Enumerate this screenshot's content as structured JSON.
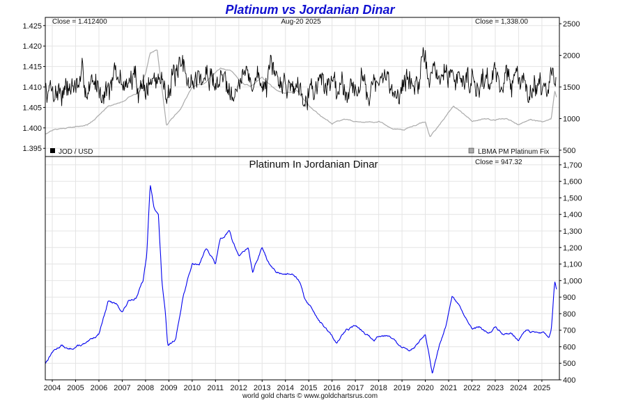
{
  "title": "Platinum vs Jordanian Dinar",
  "footer": "world gold charts © www.goldchartsrus.com",
  "colors": {
    "jod": "#000000",
    "lbma": "#aaaaaa",
    "ratio": "#0000ee",
    "title": "#1010d0"
  },
  "chart_data": [
    {
      "type": "line",
      "panel": "top",
      "date_label": "Aug-20  2025",
      "close_left": "Close = 1.412400",
      "close_right": "Close = 1,338.00",
      "legend_left": "JOD / USD",
      "legend_right": "LBMA PM Platinum Fix",
      "legend_placement": "bottom",
      "grid": true,
      "x_range": [
        2003.7,
        2025.75
      ],
      "y_left_range": [
        1.393,
        1.427
      ],
      "y_right_range": [
        400,
        2600
      ],
      "y_left_ticks": [
        "1.395",
        "1.400",
        "1.405",
        "1.410",
        "1.415",
        "1.420",
        "1.425"
      ],
      "y_left_tick_values": [
        1.395,
        1.4,
        1.405,
        1.41,
        1.415,
        1.42,
        1.425
      ],
      "y_right_ticks": [
        "500",
        "1000",
        "1500",
        "2000",
        "2500"
      ],
      "y_right_tick_values": [
        500,
        1000,
        1500,
        2000,
        2500
      ],
      "series": [
        {
          "name": "JOD / USD",
          "axis": "left",
          "noise": 0.0026,
          "x": [
            2003.7,
            2004.5,
            2005.5,
            2006.5,
            2007.5,
            2008.5,
            2009.5,
            2010.5,
            2011.5,
            2012.5,
            2013.5,
            2014.5,
            2015.5,
            2016.5,
            2017.5,
            2018.5,
            2019.5,
            2020.0,
            2021.0,
            2022.0,
            2023.0,
            2023.7,
            2024.0,
            2024.5,
            2024.9,
            2025.2,
            2025.6
          ],
          "y": [
            1.41,
            1.41,
            1.41,
            1.411,
            1.411,
            1.411,
            1.412,
            1.412,
            1.412,
            1.412,
            1.411,
            1.411,
            1.411,
            1.411,
            1.411,
            1.41,
            1.4115,
            1.413,
            1.4125,
            1.4125,
            1.4125,
            1.412,
            1.411,
            1.4115,
            1.412,
            1.411,
            1.4124
          ]
        },
        {
          "name": "LBMA PM Platinum Fix",
          "axis": "right",
          "noise": 14,
          "x": [
            2003.7,
            2004.0,
            2004.5,
            2005.0,
            2005.5,
            2006.0,
            2006.4,
            2007.0,
            2007.6,
            2008.0,
            2008.2,
            2008.5,
            2008.9,
            2009.5,
            2010.0,
            2010.5,
            2011.2,
            2011.7,
            2012.0,
            2012.5,
            2013.0,
            2013.6,
            2014.0,
            2014.5,
            2015.0,
            2015.5,
            2016.0,
            2016.5,
            2017.0,
            2017.5,
            2018.0,
            2018.5,
            2019.0,
            2019.5,
            2020.0,
            2020.2,
            2020.5,
            2021.0,
            2021.2,
            2021.7,
            2022.0,
            2022.5,
            2023.0,
            2023.5,
            2024.0,
            2024.5,
            2025.0,
            2025.4,
            2025.55,
            2025.63
          ],
          "y": [
            760,
            820,
            850,
            870,
            900,
            1050,
            1200,
            1270,
            1400,
            1700,
            2050,
            2080,
            900,
            1150,
            1500,
            1550,
            1800,
            1750,
            1600,
            1500,
            1650,
            1450,
            1400,
            1450,
            1200,
            1050,
            920,
            1000,
            950,
            950,
            950,
            850,
            820,
            880,
            950,
            700,
            850,
            1100,
            1200,
            1050,
            950,
            1000,
            980,
            1000,
            900,
            980,
            950,
            1000,
            1450,
            1338
          ]
        }
      ]
    },
    {
      "type": "line",
      "panel": "bottom",
      "title": "Platinum In Jordanian Dinar",
      "close_right": "Close = 947.32",
      "grid": true,
      "x_range": [
        2003.7,
        2025.75
      ],
      "y_range": [
        400,
        1750
      ],
      "y_ticks": [
        "400",
        "500",
        "600",
        "700",
        "800",
        "900",
        "1,000",
        "1,100",
        "1,200",
        "1,300",
        "1,400",
        "1,500",
        "1,600",
        "1,700"
      ],
      "y_tick_values": [
        400,
        500,
        600,
        700,
        800,
        900,
        1000,
        1100,
        1200,
        1300,
        1400,
        1500,
        1600,
        1700
      ],
      "x_ticks": [
        "2004",
        "2005",
        "2006",
        "2007",
        "2008",
        "2009",
        "2010",
        "2011",
        "2012",
        "2013",
        "2014",
        "2015",
        "2016",
        "2017",
        "2018",
        "2019",
        "2020",
        "2021",
        "2022",
        "2023",
        "2024",
        "2025"
      ],
      "x_tick_values": [
        2004,
        2005,
        2006,
        2007,
        2008,
        2009,
        2010,
        2011,
        2012,
        2013,
        2014,
        2015,
        2016,
        2017,
        2018,
        2019,
        2020,
        2021,
        2022,
        2023,
        2024,
        2025
      ],
      "series": [
        {
          "name": "Platinum In Jordanian Dinar",
          "noise": 10,
          "x": [
            2003.7,
            2004.0,
            2004.4,
            2004.7,
            2005.0,
            2005.5,
            2006.0,
            2006.4,
            2006.8,
            2007.0,
            2007.3,
            2007.6,
            2007.9,
            2008.05,
            2008.2,
            2008.35,
            2008.55,
            2008.7,
            2008.85,
            2008.95,
            2009.3,
            2009.6,
            2010.0,
            2010.3,
            2010.6,
            2011.0,
            2011.2,
            2011.6,
            2011.7,
            2012.0,
            2012.4,
            2012.6,
            2013.0,
            2013.3,
            2013.6,
            2014.0,
            2014.3,
            2014.6,
            2014.8,
            2015.0,
            2015.5,
            2015.9,
            2016.2,
            2016.6,
            2017.0,
            2017.4,
            2017.8,
            2018.0,
            2018.5,
            2018.9,
            2019.3,
            2019.7,
            2020.0,
            2020.2,
            2020.3,
            2020.6,
            2020.9,
            2021.15,
            2021.4,
            2021.7,
            2022.0,
            2022.3,
            2022.7,
            2023.0,
            2023.3,
            2023.7,
            2024.0,
            2024.3,
            2024.7,
            2025.0,
            2025.3,
            2025.4,
            2025.5,
            2025.55,
            2025.63
          ],
          "y": [
            500,
            570,
            610,
            580,
            600,
            620,
            680,
            880,
            850,
            810,
            880,
            900,
            1000,
            1150,
            1580,
            1450,
            1400,
            1000,
            800,
            600,
            650,
            900,
            1100,
            1100,
            1200,
            1100,
            1250,
            1300,
            1250,
            1150,
            1200,
            1050,
            1200,
            1100,
            1050,
            1040,
            1050,
            1000,
            900,
            860,
            750,
            680,
            620,
            700,
            730,
            680,
            640,
            670,
            670,
            600,
            580,
            620,
            680,
            520,
            430,
            600,
            730,
            900,
            860,
            780,
            700,
            720,
            680,
            720,
            680,
            680,
            640,
            700,
            680,
            690,
            660,
            700,
            900,
            1000,
            947.32
          ]
        }
      ]
    }
  ]
}
